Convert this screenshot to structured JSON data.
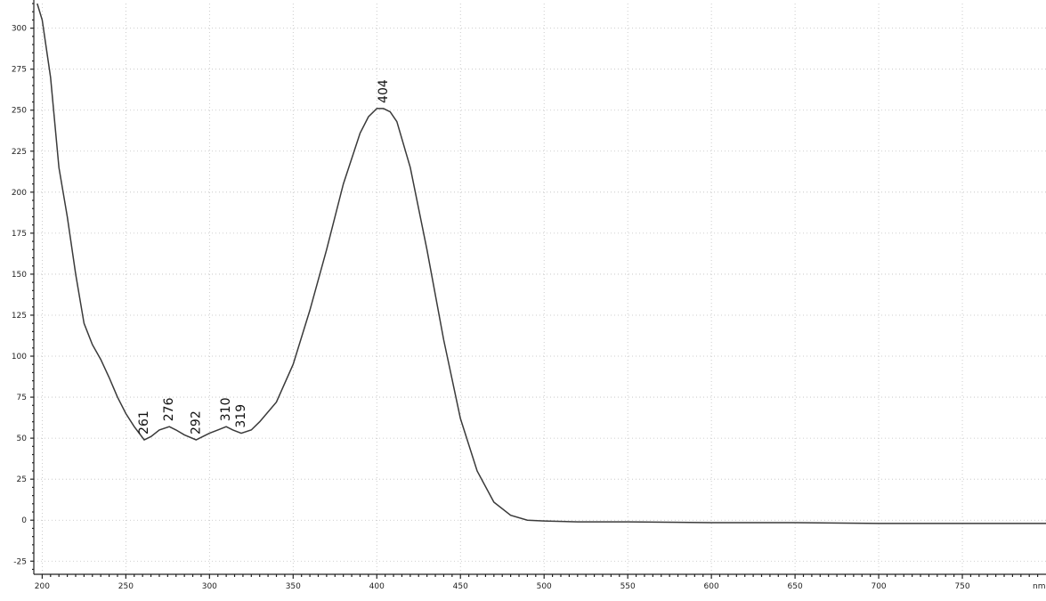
{
  "chart_data": {
    "type": "line",
    "title": "",
    "xlabel": "",
    "ylabel": "",
    "x_unit": "nm",
    "xlim": [
      195,
      800
    ],
    "ylim": [
      -33,
      315
    ],
    "grid": true,
    "x_ticks": [
      200,
      250,
      300,
      350,
      400,
      450,
      500,
      550,
      600,
      650,
      700,
      750
    ],
    "y_ticks": [
      -25,
      0,
      25,
      50,
      75,
      100,
      125,
      150,
      175,
      200,
      225,
      250,
      275,
      300
    ],
    "series": [
      {
        "x": [
          197,
          200,
          205,
          210,
          215,
          220,
          225,
          230,
          235,
          240,
          245,
          250,
          255,
          261,
          265,
          270,
          276,
          280,
          285,
          292,
          296,
          300,
          305,
          310,
          314,
          319,
          325,
          330,
          340,
          350,
          360,
          370,
          380,
          390,
          395,
          400,
          404,
          408,
          412,
          420,
          430,
          440,
          450,
          460,
          470,
          480,
          490,
          500,
          520,
          550,
          600,
          650,
          700,
          750,
          800
        ],
        "y": [
          315,
          305,
          270,
          215,
          185,
          150,
          120,
          107,
          98,
          87,
          75,
          65,
          57,
          49,
          51,
          55,
          57,
          55,
          52,
          49,
          51,
          53,
          55,
          57,
          55,
          53,
          55,
          60,
          72,
          95,
          128,
          165,
          205,
          236,
          246,
          251,
          251,
          249,
          243,
          215,
          165,
          110,
          62,
          30,
          11,
          3,
          0,
          -0.5,
          -1,
          -1,
          -1.5,
          -1.5,
          -2,
          -2,
          -2
        ]
      }
    ],
    "peak_labels": [
      {
        "x": 261,
        "y": 49,
        "text": "261"
      },
      {
        "x": 276,
        "y": 57,
        "text": "276"
      },
      {
        "x": 292,
        "y": 49,
        "text": "292"
      },
      {
        "x": 310,
        "y": 57,
        "text": "310"
      },
      {
        "x": 319,
        "y": 53,
        "text": "319"
      },
      {
        "x": 404,
        "y": 251,
        "text": "404"
      }
    ]
  }
}
